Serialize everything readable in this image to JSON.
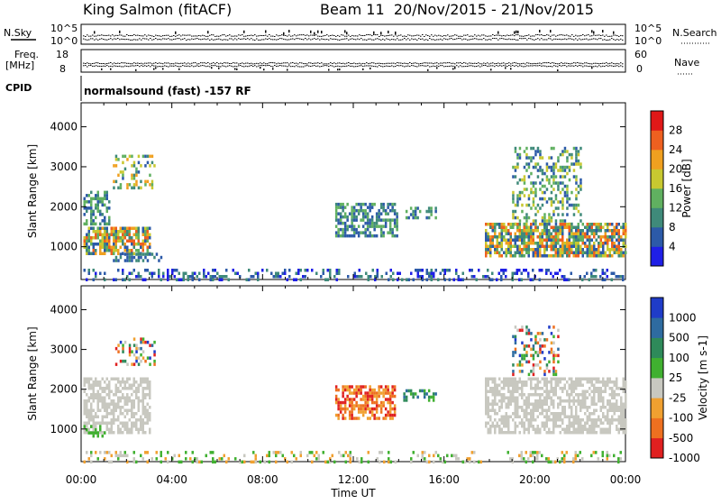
{
  "header": {
    "station": "King Salmon (fitACF)",
    "beam_dates": "Beam 11  20/Nov/2015 - 21/Nov/2015"
  },
  "status_panels": {
    "nsky_label": "N.Sky",
    "nsky_ticks": [
      "10^5",
      "10^0"
    ],
    "nsearch_label": "N.Search",
    "nsearch_ticks": [
      "10^5",
      "10^0"
    ],
    "freq_label": "Freq.",
    "freq_unit": "[MHz]",
    "freq_ticks": [
      "18",
      "8"
    ],
    "nave_label": "Nave",
    "nave_ticks": [
      "60",
      "0"
    ],
    "cpid_label": "CPID",
    "cpid_text": "normalsound (fast) -157 RF"
  },
  "chart_data": [
    {
      "type": "heatmap",
      "name": "power-panel",
      "ylabel": "Slant Range [km]",
      "yticks": [
        1000,
        2000,
        3000,
        4000
      ],
      "ylim": [
        180,
        4600
      ],
      "xlim": [
        0,
        24
      ],
      "xticks": [
        "00:00",
        "04:00",
        "08:00",
        "12:00",
        "16:00",
        "20:00",
        "00:00"
      ],
      "colorbar": {
        "label": "Power [dB]",
        "ticks": [
          "4",
          "8",
          "12",
          "16",
          "20",
          "24",
          "28"
        ],
        "colors": [
          "#1f1fe6",
          "#2c5aa8",
          "#3f8a7a",
          "#60b060",
          "#c8c830",
          "#f0a020",
          "#ee6020",
          "#e01818"
        ]
      },
      "blobs": [
        {
          "t0": 0.1,
          "t1": 3.0,
          "r0": 850,
          "r1": 1500,
          "density": 0.75,
          "lvl": [
            1,
            6
          ]
        },
        {
          "t0": 0.1,
          "t1": 1.2,
          "r0": 1600,
          "r1": 2400,
          "density": 0.55,
          "lvl": [
            1,
            3
          ]
        },
        {
          "t0": 1.4,
          "t1": 3.2,
          "r0": 2500,
          "r1": 3300,
          "density": 0.35,
          "lvl": [
            1,
            5
          ]
        },
        {
          "t0": 1.4,
          "t1": 3.5,
          "r0": 650,
          "r1": 850,
          "density": 0.5,
          "lvl": [
            1,
            2
          ]
        },
        {
          "t0": 11.2,
          "t1": 13.9,
          "r0": 1250,
          "r1": 2100,
          "density": 0.6,
          "lvl": [
            1,
            3
          ]
        },
        {
          "t0": 14.2,
          "t1": 15.6,
          "r0": 1700,
          "r1": 2000,
          "density": 0.5,
          "lvl": [
            1,
            3
          ]
        },
        {
          "t0": 17.8,
          "t1": 24.0,
          "r0": 750,
          "r1": 1600,
          "density": 0.75,
          "lvl": [
            1,
            6
          ]
        },
        {
          "t0": 19.0,
          "t1": 22.0,
          "r0": 1600,
          "r1": 3500,
          "density": 0.35,
          "lvl": [
            1,
            4
          ]
        },
        {
          "t0": 0.0,
          "t1": 24.0,
          "r0": 200,
          "r1": 450,
          "density": 0.28,
          "lvl": [
            0,
            2
          ]
        }
      ]
    },
    {
      "type": "heatmap",
      "name": "velocity-panel",
      "ylabel": "Slant Range [km]",
      "yticks": [
        1000,
        2000,
        3000,
        4000
      ],
      "ylim": [
        180,
        4600
      ],
      "xlim": [
        0,
        24
      ],
      "xlabel": "Time UT",
      "xticks": [
        "00:00",
        "04:00",
        "08:00",
        "12:00",
        "16:00",
        "20:00",
        "00:00"
      ],
      "colorbar": {
        "label": "Velocity [m s-1]",
        "ticks": [
          "1000",
          "500",
          "100",
          "25",
          "-25",
          "-100",
          "-500",
          "-1000"
        ],
        "colors": [
          "#1f3cc8",
          "#2e6ba0",
          "#2e8a5a",
          "#40b030",
          "#c8c8c0",
          "#f0a030",
          "#ee7020",
          "#e02020"
        ]
      },
      "blobs": [
        {
          "t0": 0.1,
          "t1": 3.0,
          "r0": 900,
          "r1": 2300,
          "density": 0.65,
          "vel": [
            4,
            4
          ]
        },
        {
          "t0": 0.1,
          "t1": 1.0,
          "r0": 800,
          "r1": 1100,
          "density": 0.4,
          "vel": [
            3,
            3
          ]
        },
        {
          "t0": 1.5,
          "t1": 3.2,
          "r0": 2600,
          "r1": 3300,
          "density": 0.35,
          "vel": [
            0,
            7
          ]
        },
        {
          "t0": 11.2,
          "t1": 13.8,
          "r0": 1300,
          "r1": 2100,
          "density": 0.65,
          "vel": [
            5,
            7
          ]
        },
        {
          "t0": 14.2,
          "t1": 15.6,
          "r0": 1700,
          "r1": 2000,
          "density": 0.45,
          "vel": [
            1,
            3
          ]
        },
        {
          "t0": 17.8,
          "t1": 24.0,
          "r0": 900,
          "r1": 2300,
          "density": 0.65,
          "vel": [
            4,
            4
          ]
        },
        {
          "t0": 19.0,
          "t1": 21.0,
          "r0": 2400,
          "r1": 3600,
          "density": 0.3,
          "vel": [
            0,
            7
          ]
        },
        {
          "t0": 0.0,
          "t1": 24.0,
          "r0": 200,
          "r1": 450,
          "density": 0.25,
          "vel": [
            3,
            5
          ]
        }
      ]
    }
  ]
}
